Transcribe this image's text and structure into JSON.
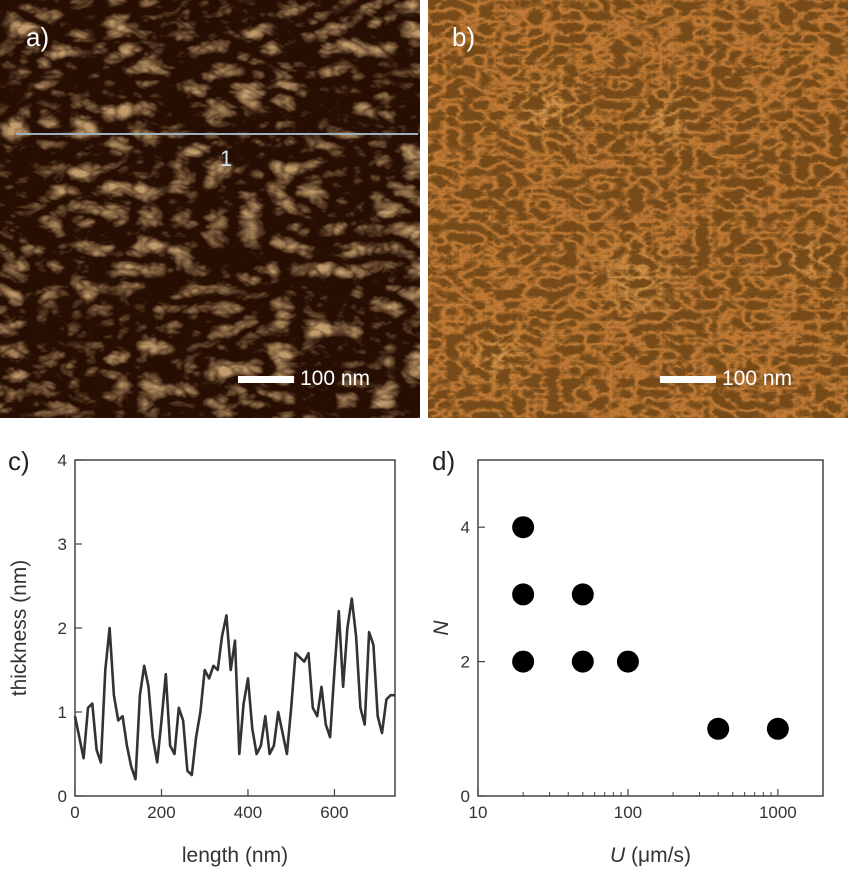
{
  "panels": {
    "a": {
      "label": "a)",
      "scale_bar": "100 nm",
      "line_marker": "1"
    },
    "b": {
      "label": "b)",
      "scale_bar": "100 nm"
    },
    "c": {
      "label": "c)"
    },
    "d": {
      "label": "d)"
    }
  },
  "colors": {
    "afm_dark": "#1c0a02",
    "afm_light": "#e8a04a",
    "line": "#333333",
    "marker": "#000000"
  },
  "chart_data": [
    {
      "type": "line",
      "panel": "c",
      "xlabel": "length (nm)",
      "ylabel": "thickness (nm)",
      "xlim": [
        0,
        740
      ],
      "ylim": [
        0,
        4
      ],
      "xticks": [
        0,
        200,
        400,
        600
      ],
      "yticks": [
        0,
        1,
        2,
        3,
        4
      ],
      "series": [
        {
          "x": [
            0,
            10,
            20,
            30,
            40,
            50,
            60,
            70,
            80,
            90,
            100,
            110,
            120,
            130,
            140,
            150,
            160,
            170,
            180,
            190,
            200,
            210,
            220,
            230,
            240,
            250,
            260,
            270,
            280,
            290,
            300,
            310,
            320,
            330,
            340,
            350,
            360,
            370,
            380,
            390,
            400,
            410,
            420,
            430,
            440,
            450,
            460,
            470,
            480,
            490,
            500,
            510,
            520,
            530,
            540,
            550,
            560,
            570,
            580,
            590,
            600,
            610,
            620,
            630,
            640,
            650,
            660,
            670,
            680,
            690,
            700,
            710,
            720,
            730,
            740
          ],
          "y": [
            0.95,
            0.7,
            0.45,
            1.05,
            1.1,
            0.55,
            0.4,
            1.5,
            2.0,
            1.2,
            0.9,
            0.95,
            0.6,
            0.35,
            0.2,
            1.2,
            1.55,
            1.3,
            0.7,
            0.4,
            0.9,
            1.45,
            0.6,
            0.5,
            1.05,
            0.9,
            0.3,
            0.25,
            0.7,
            1.0,
            1.5,
            1.4,
            1.55,
            1.5,
            1.9,
            2.15,
            1.5,
            1.85,
            0.5,
            1.1,
            1.4,
            0.8,
            0.5,
            0.6,
            0.95,
            0.5,
            0.6,
            1.0,
            0.75,
            0.5,
            1.05,
            1.7,
            1.65,
            1.6,
            1.7,
            1.05,
            0.95,
            1.3,
            0.85,
            0.7,
            1.5,
            2.2,
            1.3,
            2.0,
            2.35,
            1.9,
            1.05,
            0.85,
            1.95,
            1.8,
            0.95,
            0.75,
            1.15,
            1.2,
            1.2
          ]
        }
      ]
    },
    {
      "type": "scatter",
      "panel": "d",
      "xlabel_symbol": "U",
      "xlabel_unit": "(μm/s)",
      "ylabel": "N",
      "xscale": "log",
      "xlim": [
        10,
        2000
      ],
      "ylim": [
        0,
        5
      ],
      "xticks": [
        10,
        100,
        1000
      ],
      "yticks": [
        0,
        2,
        4
      ],
      "series": [
        {
          "x": [
            20,
            20,
            20,
            50,
            50,
            100,
            400,
            1000
          ],
          "y": [
            4,
            3,
            2,
            3,
            2,
            2,
            1,
            1
          ]
        }
      ]
    }
  ]
}
